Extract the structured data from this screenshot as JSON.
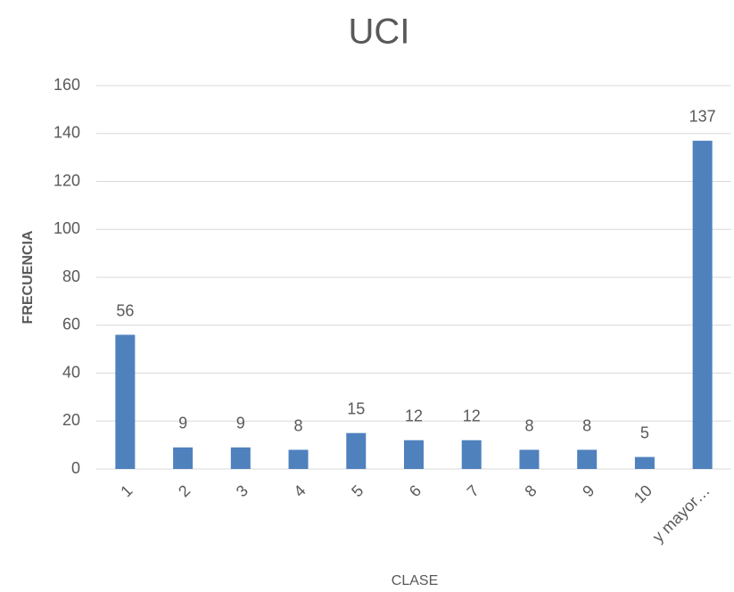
{
  "chart_data": {
    "type": "bar",
    "title": "UCI",
    "x_label": "CLASE",
    "y_label": "FRECUENCIA",
    "categories": [
      "1",
      "2",
      "3",
      "4",
      "5",
      "6",
      "7",
      "8",
      "9",
      "10",
      "y mayor…"
    ],
    "values": [
      56,
      9,
      9,
      8,
      15,
      12,
      12,
      8,
      8,
      5,
      137
    ],
    "color": "#4f81bd",
    "ylim": [
      0,
      160
    ],
    "yticks": [
      0,
      20,
      40,
      60,
      80,
      100,
      120,
      140,
      160
    ],
    "grid": true,
    "data_labels": true
  }
}
